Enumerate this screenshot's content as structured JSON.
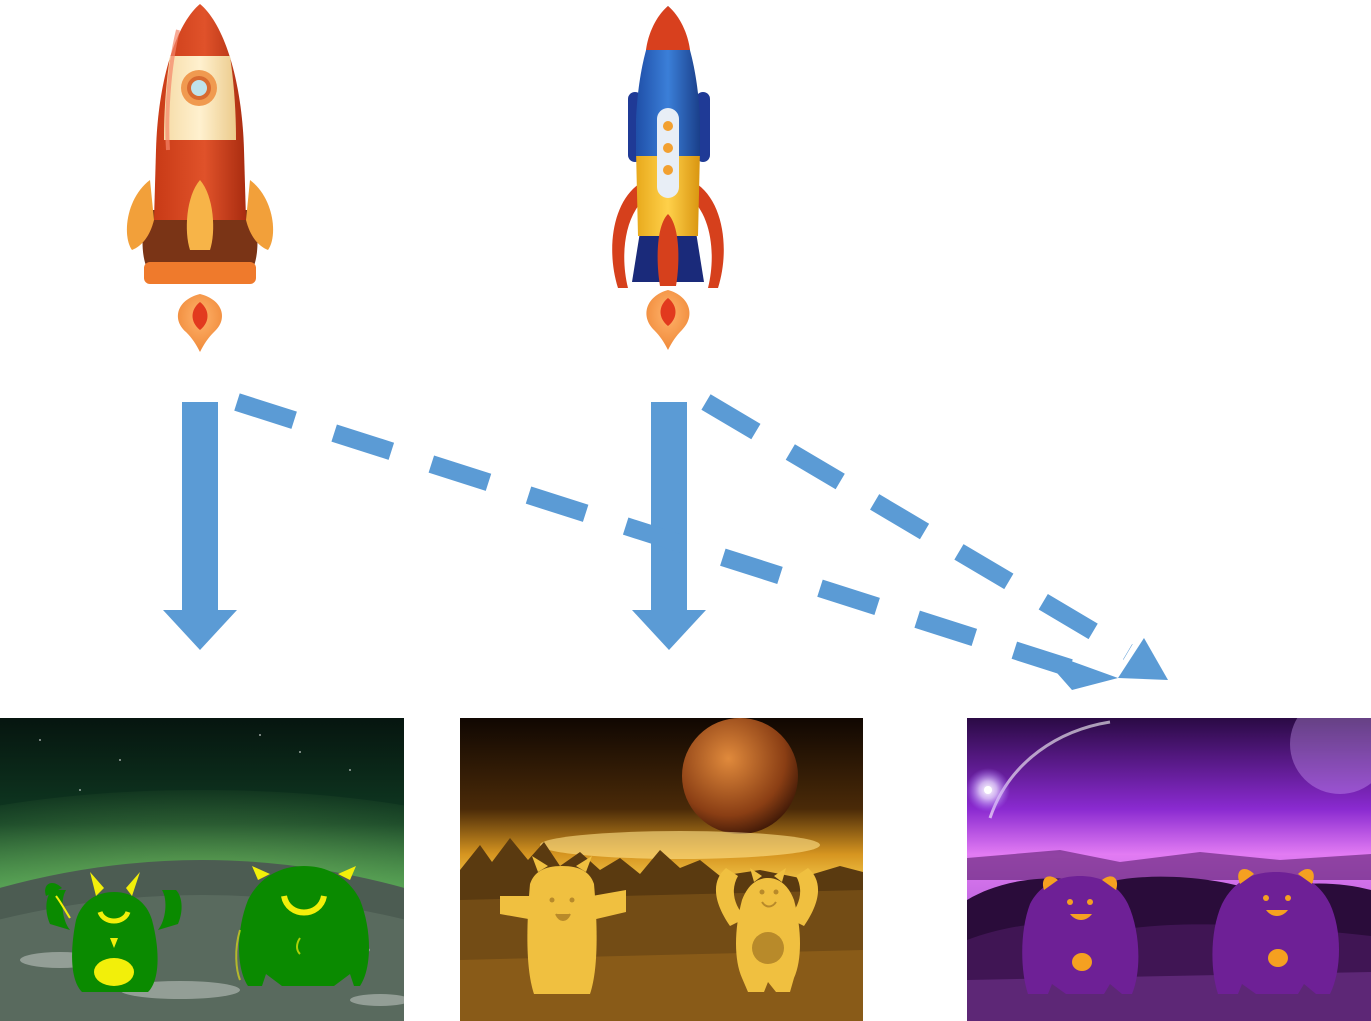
{
  "diagram": {
    "nodes": [
      {
        "id": "rocket-a",
        "kind": "rocket",
        "variant": "red-cream"
      },
      {
        "id": "rocket-b",
        "kind": "rocket",
        "variant": "blue-yellow"
      },
      {
        "id": "planet-green",
        "kind": "planet-scene",
        "theme": "green",
        "creatures": [
          "green-horned-monster",
          "green-cyclops-monster"
        ]
      },
      {
        "id": "planet-gold",
        "kind": "planet-scene",
        "theme": "gold",
        "creatures": [
          "yellow-horned-creature",
          "yellow-waving-creature"
        ]
      },
      {
        "id": "planet-purple",
        "kind": "planet-scene",
        "theme": "purple",
        "creatures": [
          "purple-monster",
          "purple-monster"
        ]
      }
    ],
    "edges": [
      {
        "from": "rocket-a",
        "to": "planet-green",
        "style": "solid"
      },
      {
        "from": "rocket-b",
        "to": "planet-gold",
        "style": "solid"
      },
      {
        "from": "rocket-a",
        "to": "planet-purple",
        "style": "dashed"
      },
      {
        "from": "rocket-b",
        "to": "planet-purple",
        "style": "dashed"
      }
    ]
  },
  "colors": {
    "arrow": "#5b9bd5",
    "green_monster": "#0a8a00",
    "green_accent": "#f2ef0a",
    "gold_monster": "#f0c040",
    "gold_accent": "#b88a2a",
    "purple_monster": "#6e2096",
    "purple_accent": "#f5a020"
  }
}
